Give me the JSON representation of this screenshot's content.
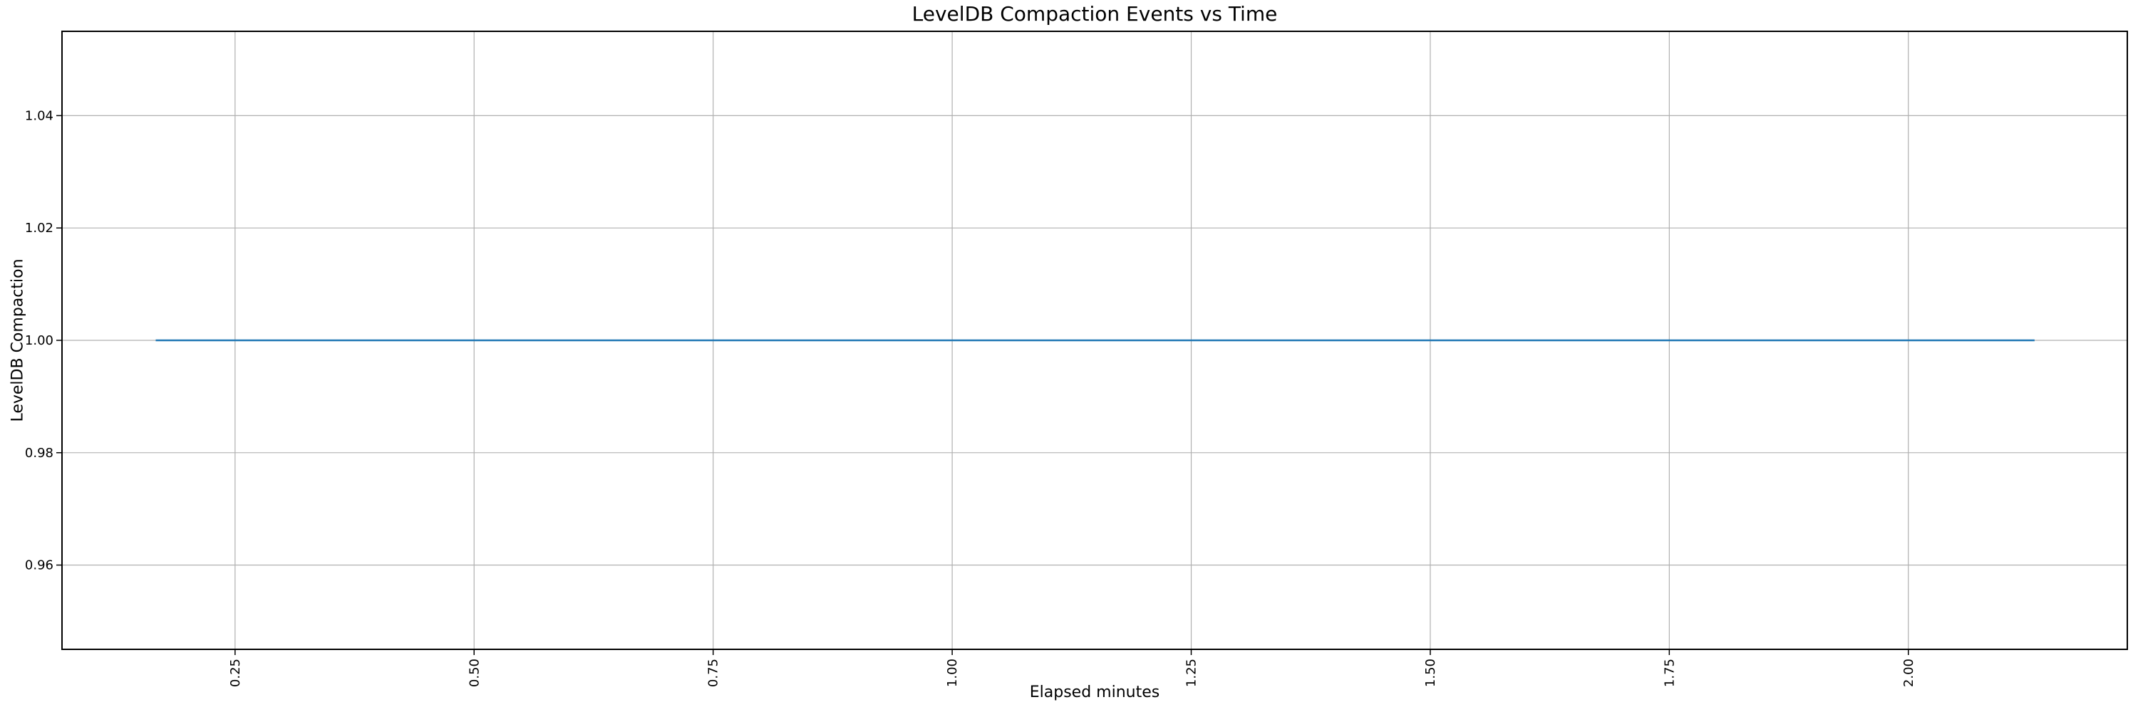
{
  "chart_data": {
    "type": "line",
    "title": "LevelDB Compaction Events vs Time",
    "xlabel": "Elapsed minutes",
    "ylabel": "LevelDB Compaction",
    "xlim": [
      0.069,
      2.229
    ],
    "ylim": [
      0.945,
      1.055
    ],
    "xticks": {
      "values": [
        0.25,
        0.5,
        0.75,
        1.0,
        1.25,
        1.5,
        1.75,
        2.0
      ],
      "labels": [
        "0.25",
        "0.50",
        "0.75",
        "1.00",
        "1.25",
        "1.50",
        "1.75",
        "2.00"
      ],
      "rotation_deg": 90
    },
    "yticks": {
      "values": [
        0.96,
        0.98,
        1.0,
        1.02,
        1.04
      ],
      "labels": [
        "0.96",
        "0.98",
        "1.00",
        "1.02",
        "1.04"
      ]
    },
    "grid": true,
    "legend": false,
    "series": [
      {
        "name": "LevelDB Compaction",
        "color": "#1f77b4",
        "x": [
          0.167,
          2.132
        ],
        "y": [
          1.0,
          1.0
        ]
      }
    ],
    "colors": {
      "line": "#1f77b4",
      "grid": "#b0b0b0",
      "spine": "#000000",
      "text": "#000000",
      "background": "#ffffff"
    }
  }
}
